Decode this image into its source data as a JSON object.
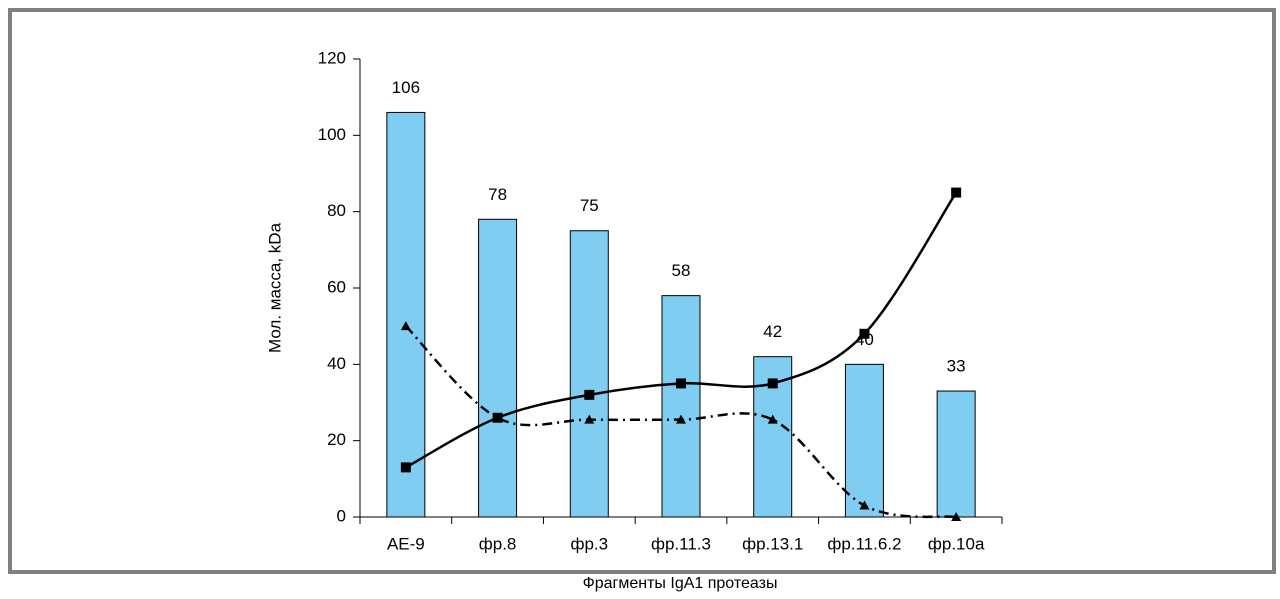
{
  "chart_data": {
    "type": "bar",
    "y_label": "Мол. масса,   kDa",
    "x_label": "Фрагменты IgA1 протеазы",
    "categories": [
      "AE-9",
      "фр.8",
      "фр.3",
      "фр.11.3",
      "фр.13.1",
      "фр.11.6.2",
      "фр.10а"
    ],
    "series": [
      {
        "type": "bar",
        "color": "#7fcdf0",
        "values": [
          106,
          78,
          75,
          58,
          42,
          40,
          33
        ]
      },
      {
        "type": "line",
        "color": "#000000",
        "marker": "square",
        "dash": "solid",
        "values": [
          13,
          26,
          32,
          35,
          35,
          48,
          85
        ]
      },
      {
        "type": "line",
        "color": "#000000",
        "marker": "triangle",
        "dash": "dashdot",
        "values": [
          50,
          26,
          25.5,
          25.5,
          25.5,
          3,
          0
        ]
      }
    ],
    "ylim": [
      0,
      120
    ],
    "yticks": [
      0,
      20,
      40,
      60,
      80,
      100,
      120
    ],
    "grid": false
  }
}
